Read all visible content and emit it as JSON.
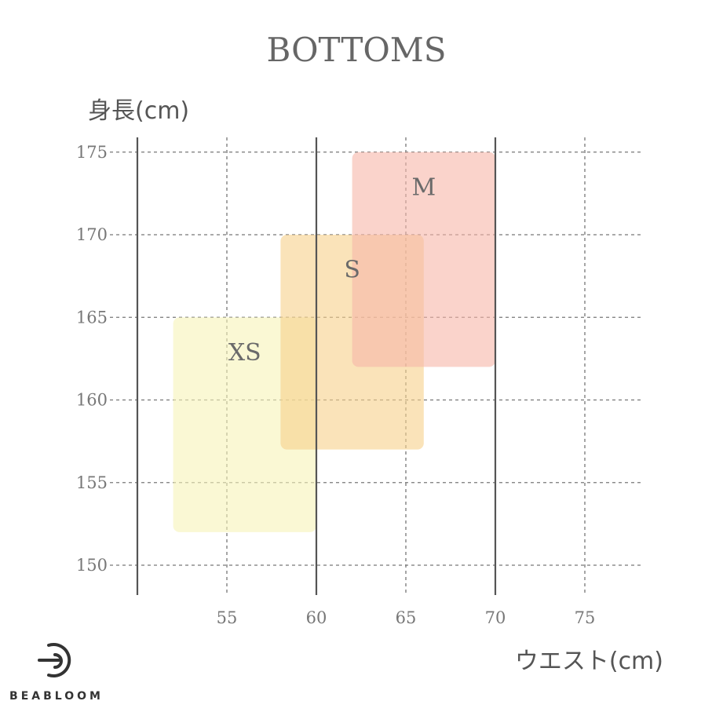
{
  "chart_data": {
    "type": "area",
    "title": "BOTTOMS",
    "xlabel": "ウエスト(cm)",
    "ylabel": "身長(cm)",
    "x_ticks": [
      55,
      60,
      65,
      70,
      75
    ],
    "y_ticks": [
      150,
      155,
      160,
      165,
      170,
      175
    ],
    "xlim": [
      50,
      78
    ],
    "ylim": [
      148,
      176
    ],
    "grid": true,
    "regions": [
      {
        "name": "XS",
        "waist": [
          52,
          60
        ],
        "height": [
          152,
          165
        ],
        "color": "#f7f3b8"
      },
      {
        "name": "S",
        "waist": [
          58,
          66
        ],
        "height": [
          157,
          170
        ],
        "color": "#f7d08a"
      },
      {
        "name": "M",
        "waist": [
          62,
          70
        ],
        "height": [
          162,
          175
        ],
        "color": "#f7b5a8"
      }
    ]
  },
  "brand": {
    "name": "BEABLOOM",
    "logo_icon": "beabloom-logo-icon",
    "color": "#333333"
  }
}
